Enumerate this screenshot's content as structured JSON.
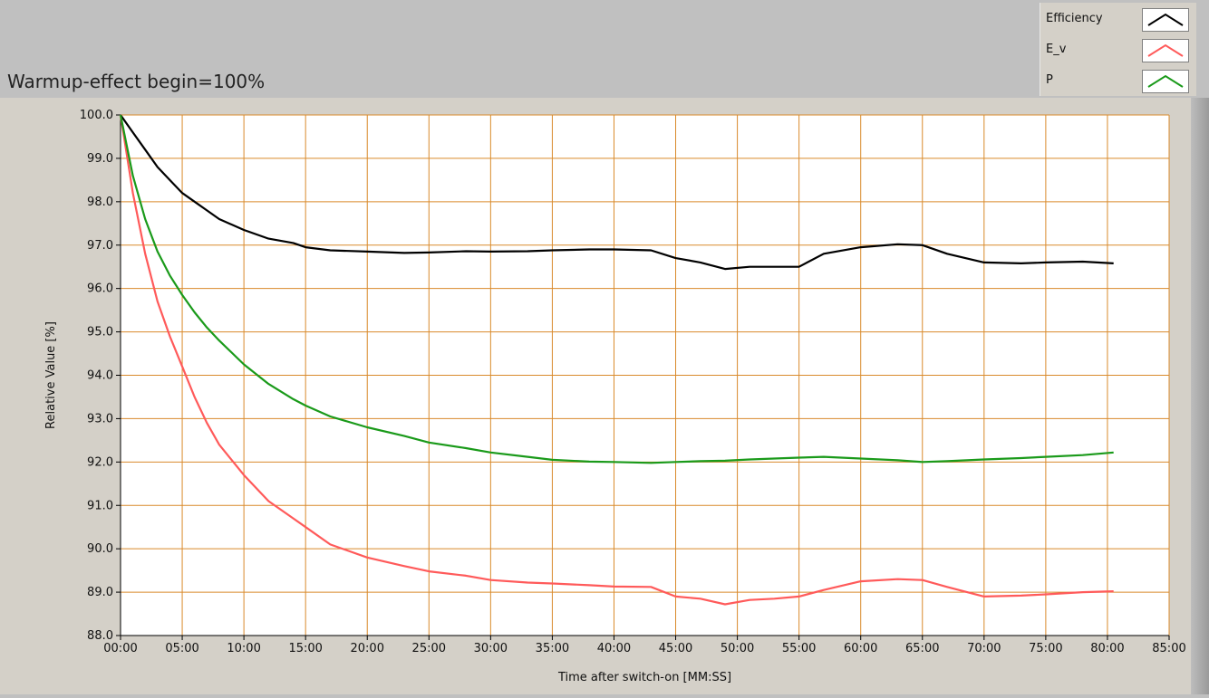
{
  "window": {
    "background": "#c0c0c0",
    "plot_background": "#ffffff",
    "grid_color": "#d98a2b"
  },
  "title": "Warmup-effect begin=100%",
  "legend": {
    "items": [
      {
        "label": "Efficiency",
        "color": "#000000"
      },
      {
        "label": "E_v",
        "color": "#ff5a5a"
      },
      {
        "label": "P",
        "color": "#1a9a1a"
      }
    ]
  },
  "chart_data": {
    "type": "line",
    "title": "Warmup-effect begin=100%",
    "xlabel": "Time after switch-on [MM:SS]",
    "ylabel": "Relative Value [%]",
    "x_unit": "minutes",
    "xlim": [
      0,
      85
    ],
    "ylim": [
      88,
      100
    ],
    "x_ticks": [
      0,
      5,
      10,
      15,
      20,
      25,
      30,
      35,
      40,
      45,
      50,
      55,
      60,
      65,
      70,
      75,
      80,
      85
    ],
    "x_tick_labels": [
      "00:00",
      "05:00",
      "10:00",
      "15:00",
      "20:00",
      "25:00",
      "30:00",
      "35:00",
      "40:00",
      "45:00",
      "50:00",
      "55:00",
      "60:00",
      "65:00",
      "70:00",
      "75:00",
      "80:00",
      "85:00"
    ],
    "y_ticks": [
      88,
      89,
      90,
      91,
      92,
      93,
      94,
      95,
      96,
      97,
      98,
      99,
      100
    ],
    "y_tick_labels": [
      "88.0",
      "89.0",
      "90.0",
      "91.0",
      "92.0",
      "93.0",
      "94.0",
      "95.0",
      "96.0",
      "97.0",
      "98.0",
      "99.0",
      "100.0"
    ],
    "grid": true,
    "legend_position": "top-right",
    "series": [
      {
        "name": "Efficiency",
        "color": "#000000",
        "x": [
          0,
          1,
          2,
          3,
          4,
          5,
          6,
          7,
          8,
          10,
          12,
          14,
          15,
          17,
          20,
          23,
          25,
          28,
          30,
          33,
          35,
          38,
          40,
          43,
          45,
          47,
          49,
          51,
          53,
          55,
          57,
          60,
          63,
          65,
          67,
          70,
          73,
          75,
          78,
          80.5
        ],
        "values": [
          100.0,
          99.6,
          99.2,
          98.8,
          98.5,
          98.2,
          98.0,
          97.8,
          97.6,
          97.35,
          97.15,
          97.05,
          96.95,
          96.88,
          96.85,
          96.82,
          96.83,
          96.86,
          96.85,
          96.86,
          96.88,
          96.9,
          96.9,
          96.88,
          96.7,
          96.6,
          96.45,
          96.5,
          96.5,
          96.5,
          96.8,
          96.95,
          97.02,
          97.0,
          96.8,
          96.6,
          96.58,
          96.6,
          96.62,
          96.58
        ]
      },
      {
        "name": "E_v",
        "color": "#ff5a5a",
        "x": [
          0,
          1,
          2,
          3,
          4,
          5,
          6,
          7,
          8,
          10,
          12,
          14,
          15,
          17,
          20,
          23,
          25,
          28,
          30,
          33,
          35,
          38,
          40,
          43,
          45,
          47,
          49,
          51,
          53,
          55,
          57,
          60,
          63,
          65,
          67,
          70,
          73,
          75,
          78,
          80.5
        ],
        "values": [
          100.0,
          98.2,
          96.8,
          95.7,
          94.9,
          94.2,
          93.5,
          92.9,
          92.4,
          91.7,
          91.1,
          90.7,
          90.5,
          90.1,
          89.8,
          89.6,
          89.48,
          89.38,
          89.28,
          89.22,
          89.2,
          89.16,
          89.13,
          89.12,
          88.9,
          88.85,
          88.72,
          88.82,
          88.85,
          88.9,
          89.05,
          89.25,
          89.3,
          89.28,
          89.12,
          88.9,
          88.92,
          88.95,
          89.0,
          89.02
        ]
      },
      {
        "name": "P",
        "color": "#1a9a1a",
        "x": [
          0,
          1,
          2,
          3,
          4,
          5,
          6,
          7,
          8,
          10,
          12,
          14,
          15,
          17,
          20,
          23,
          25,
          28,
          30,
          33,
          35,
          38,
          40,
          43,
          45,
          47,
          49,
          51,
          53,
          55,
          57,
          60,
          63,
          65,
          67,
          70,
          73,
          75,
          78,
          80.5
        ],
        "values": [
          100.0,
          98.6,
          97.6,
          96.85,
          96.3,
          95.85,
          95.45,
          95.1,
          94.8,
          94.25,
          93.8,
          93.45,
          93.3,
          93.05,
          92.8,
          92.6,
          92.45,
          92.32,
          92.22,
          92.12,
          92.05,
          92.01,
          92.0,
          91.98,
          92.0,
          92.02,
          92.03,
          92.06,
          92.08,
          92.1,
          92.12,
          92.08,
          92.04,
          92.0,
          92.02,
          92.06,
          92.09,
          92.12,
          92.16,
          92.22
        ]
      }
    ]
  }
}
